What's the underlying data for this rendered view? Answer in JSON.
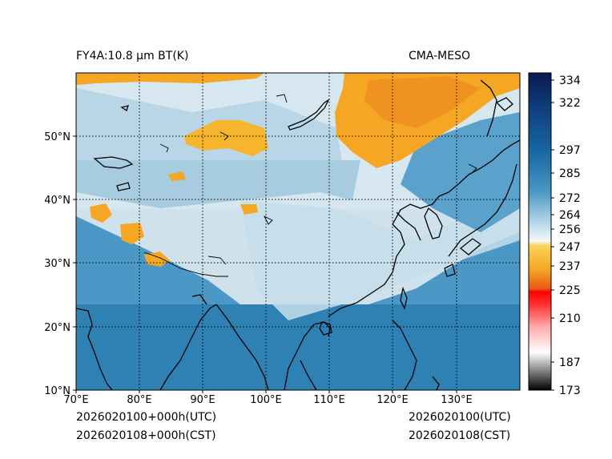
{
  "header": {
    "title_left": "FY4A:10.8 μm BT(K)",
    "title_right": "CMA-MESO"
  },
  "footer": {
    "utc_left": "2026020100+000h(UTC)",
    "cst_left": "2026020108+000h(CST)",
    "utc_right": "2026020100(UTC)",
    "cst_right": "2026020108(CST)"
  },
  "map": {
    "lon_ticks": [
      "70°E",
      "80°E",
      "90°E",
      "100°E",
      "110°E",
      "120°E",
      "130°E"
    ],
    "lat_ticks": [
      "10°N",
      "20°N",
      "30°N",
      "40°N",
      "50°N"
    ]
  },
  "colorbar": {
    "ticks": [
      "334",
      "322",
      "297",
      "285",
      "272",
      "264",
      "256",
      "247",
      "237",
      "225",
      "210",
      "187",
      "173"
    ]
  },
  "colors": {
    "warm_ocean": "#2b7fb3",
    "cold_cloud": "#f5a623",
    "land_cloud": "#d8e6ee",
    "coast": "#000000"
  }
}
